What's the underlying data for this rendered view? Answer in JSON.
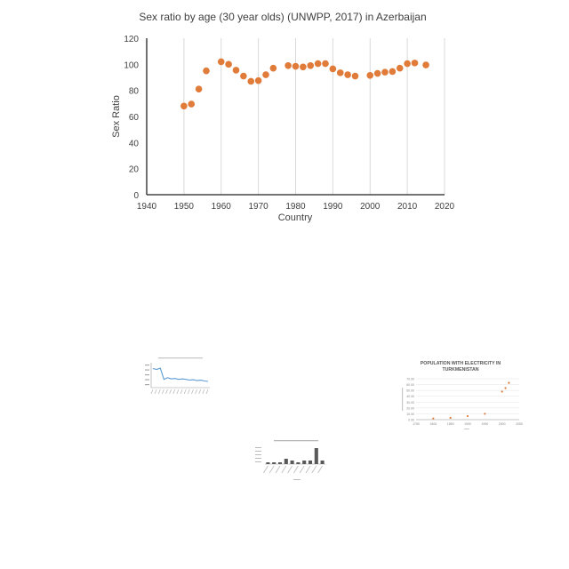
{
  "colors": {
    "marker": "#E07B39",
    "axis": "#222222",
    "grid": "#D9D9D9",
    "text": "#404040",
    "line": "#5B9BD5",
    "bar": "#595959"
  },
  "chart_data": [
    {
      "type": "scatter",
      "title": "Sex ratio by age (30 year olds) (UNWPP, 2017) in Azerbaijan",
      "xlabel": "Country",
      "ylabel": "Sex Ratio",
      "xlim": [
        1940,
        2020
      ],
      "ylim": [
        0,
        120
      ],
      "xticks": [
        1940,
        1950,
        1960,
        1970,
        1980,
        1990,
        2000,
        2010,
        2020
      ],
      "yticks": [
        0,
        20,
        40,
        60,
        80,
        100,
        120
      ],
      "grid": true,
      "points": [
        {
          "x": 1950,
          "y": 68
        },
        {
          "x": 1952,
          "y": 69.5
        },
        {
          "x": 1954,
          "y": 81
        },
        {
          "x": 1956,
          "y": 95
        },
        {
          "x": 1960,
          "y": 102
        },
        {
          "x": 1962,
          "y": 100
        },
        {
          "x": 1964,
          "y": 95.5
        },
        {
          "x": 1966,
          "y": 91
        },
        {
          "x": 1968,
          "y": 87
        },
        {
          "x": 1970,
          "y": 87.5
        },
        {
          "x": 1972,
          "y": 92
        },
        {
          "x": 1974,
          "y": 97
        },
        {
          "x": 1978,
          "y": 99
        },
        {
          "x": 1980,
          "y": 98.5
        },
        {
          "x": 1982,
          "y": 98
        },
        {
          "x": 1984,
          "y": 99
        },
        {
          "x": 1986,
          "y": 100.5
        },
        {
          "x": 1988,
          "y": 100.5
        },
        {
          "x": 1990,
          "y": 96.5
        },
        {
          "x": 1992,
          "y": 93.5
        },
        {
          "x": 1994,
          "y": 92
        },
        {
          "x": 1996,
          "y": 91
        },
        {
          "x": 2000,
          "y": 91.5
        },
        {
          "x": 2002,
          "y": 93
        },
        {
          "x": 2004,
          "y": 94
        },
        {
          "x": 2006,
          "y": 94.5
        },
        {
          "x": 2008,
          "y": 97
        },
        {
          "x": 2010,
          "y": 100.5
        },
        {
          "x": 2012,
          "y": 101
        },
        {
          "x": 2015,
          "y": 99.5
        }
      ]
    },
    {
      "type": "line",
      "title": "",
      "ylim": [
        0,
        60
      ],
      "values": [
        46,
        44,
        47,
        20,
        24,
        21,
        22,
        20,
        21,
        20,
        18,
        19,
        17,
        18,
        16,
        15
      ]
    },
    {
      "type": "bar",
      "title": "",
      "ylim": [
        0,
        10
      ],
      "values": [
        1,
        1,
        1,
        3,
        2,
        1,
        2,
        2,
        9,
        2
      ]
    },
    {
      "type": "scatter",
      "title": "POPULATION WITH ELECTRICITY IN TURKMENISTAN",
      "xlim": [
        1750,
        2050
      ],
      "ylim": [
        0,
        70
      ],
      "xticks": [
        1750,
        1800,
        1850,
        1900,
        1950,
        2000,
        2050
      ],
      "yticks": [
        0,
        10,
        20,
        30,
        40,
        50,
        60,
        70
      ],
      "points": [
        {
          "x": 1800,
          "y": 2
        },
        {
          "x": 1850,
          "y": 3
        },
        {
          "x": 1900,
          "y": 6
        },
        {
          "x": 1950,
          "y": 10
        },
        {
          "x": 2000,
          "y": 48
        },
        {
          "x": 2010,
          "y": 54
        },
        {
          "x": 2020,
          "y": 63
        }
      ]
    }
  ]
}
